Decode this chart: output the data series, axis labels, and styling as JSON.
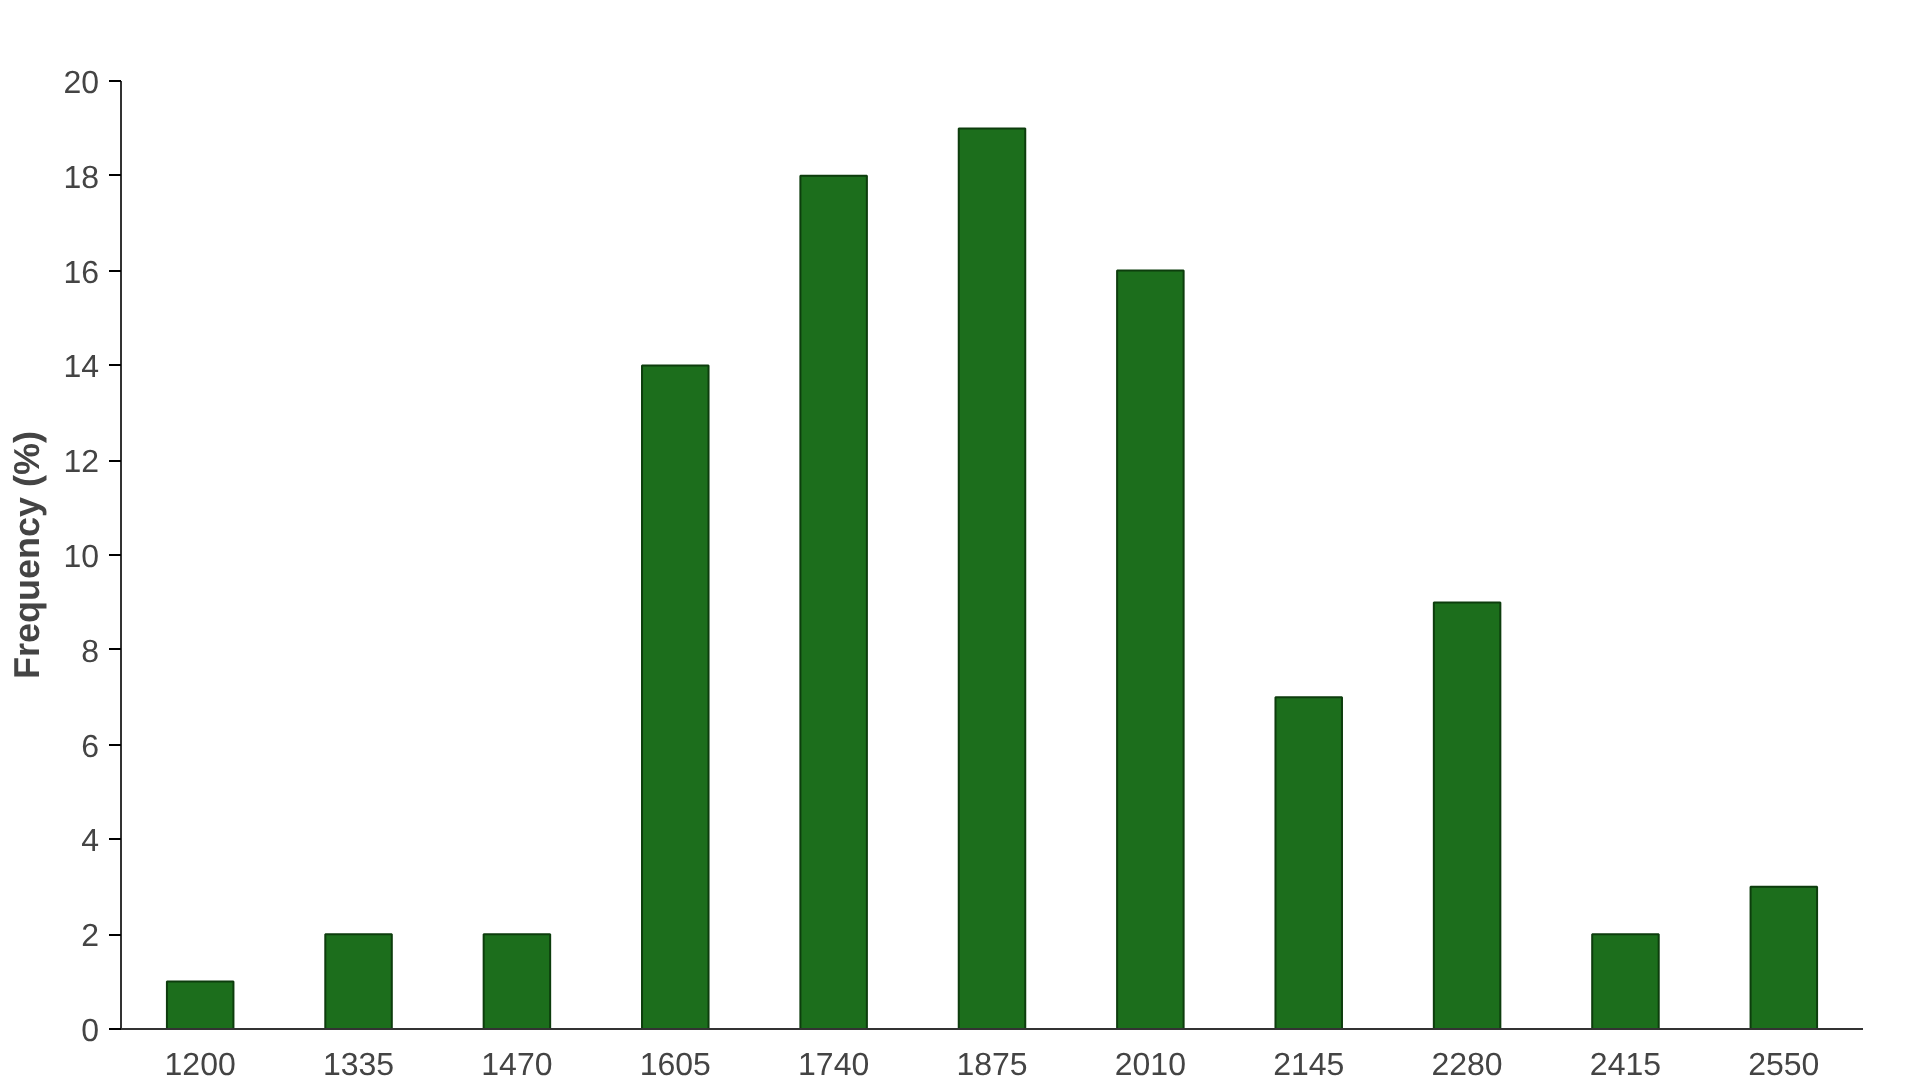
{
  "chart_data": {
    "type": "bar",
    "ylabel": "Frequency (%)",
    "categories": [
      "1200",
      "1335",
      "1470",
      "1605",
      "1740",
      "1875",
      "2010",
      "2145",
      "2280",
      "2415",
      "2550"
    ],
    "values": [
      1,
      2,
      2,
      14,
      18,
      19,
      16,
      7,
      9,
      2,
      3
    ],
    "color": "#1c6e1c",
    "ylim": [
      0,
      20
    ],
    "yticks": [
      0,
      2,
      4,
      6,
      8,
      10,
      12,
      14,
      16,
      18,
      20
    ],
    "grid": false
  }
}
